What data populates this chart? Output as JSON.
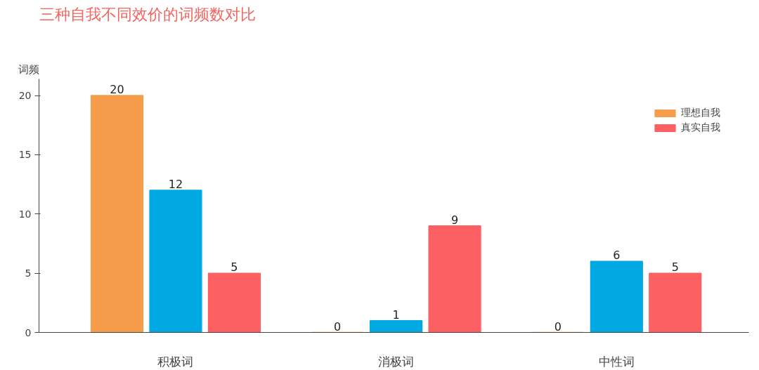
{
  "chart_data": {
    "type": "bar",
    "title": "三种自我不同效价的词频数对比",
    "ylabel": "词频",
    "categories": [
      "积极词",
      "消极词",
      "中性词"
    ],
    "series": [
      {
        "name": "理想自我",
        "color": "#f59d4a",
        "values": [
          20,
          0,
          0
        ]
      },
      {
        "color": "#00a9e2",
        "values": [
          12,
          1,
          6
        ]
      },
      {
        "name": "真实自我",
        "color": "#fd6063",
        "values": [
          5,
          9,
          5
        ]
      }
    ],
    "ylim": [
      0,
      21.4
    ],
    "yticks": [
      0,
      5,
      10,
      15,
      20
    ],
    "data_labels": true,
    "grid": false,
    "legend": "top right"
  }
}
